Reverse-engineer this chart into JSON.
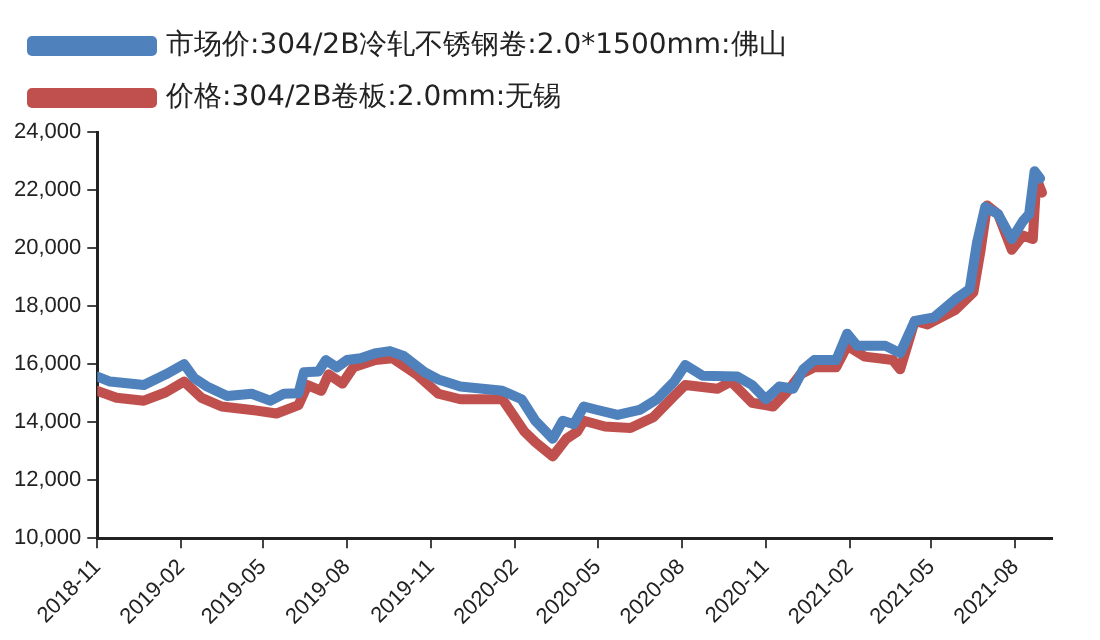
{
  "chart_data": {
    "type": "line",
    "legend": "top",
    "marker": "none",
    "line_style": "solid",
    "grid": false,
    "xlim": [
      "2018-11-01",
      "2021-09-10"
    ],
    "xticks": [
      "2018-11",
      "2019-02",
      "2019-05",
      "2019-08",
      "2019-11",
      "2020-02",
      "2020-05",
      "2020-08",
      "2020-11",
      "2021-02",
      "2021-05",
      "2021-08"
    ],
    "ylim": [
      10000,
      24000
    ],
    "yticks": [
      {
        "value": 10000,
        "label": "10,000"
      },
      {
        "value": 12000,
        "label": "12,000"
      },
      {
        "value": 14000,
        "label": "14,000"
      },
      {
        "value": 16000,
        "label": "16,000"
      },
      {
        "value": 18000,
        "label": "18,000"
      },
      {
        "value": 20000,
        "label": "20,000"
      },
      {
        "value": 22000,
        "label": "22,000"
      },
      {
        "value": 24000,
        "label": "24,000"
      }
    ],
    "series": [
      {
        "name": "市场价:304/2B冷轧不锈钢卷:2.0*1500mm:佛山",
        "color": "#4f81bd",
        "x": [
          "2018-11-01",
          "2018-11-15",
          "2018-12-22",
          "2019-01-15",
          "2019-02-04",
          "2019-02-15",
          "2019-03-01",
          "2019-03-23",
          "2019-04-19",
          "2019-05-09",
          "2019-05-24",
          "2019-06-09",
          "2019-06-15",
          "2019-07-01",
          "2019-07-09",
          "2019-07-21",
          "2019-08-01",
          "2019-08-16",
          "2019-09-02",
          "2019-09-17",
          "2019-10-02",
          "2019-10-25",
          "2019-11-09",
          "2019-12-03",
          "2020-01-18",
          "2020-02-08",
          "2020-02-23",
          "2020-03-13",
          "2020-03-24",
          "2020-04-05",
          "2020-04-16",
          "2020-05-01",
          "2020-05-23",
          "2020-06-16",
          "2020-07-05",
          "2020-07-24",
          "2020-08-05",
          "2020-08-24",
          "2020-10-01",
          "2020-10-17",
          "2020-11-01",
          "2020-11-16",
          "2020-12-01",
          "2020-12-12",
          "2020-12-24",
          "2021-01-17",
          "2021-01-29",
          "2021-02-09",
          "2021-03-12",
          "2021-03-28",
          "2021-04-13",
          "2021-05-04",
          "2021-05-27",
          "2021-06-12",
          "2021-06-20",
          "2021-06-29",
          "2021-07-13",
          "2021-07-28",
          "2021-08-09",
          "2021-08-16",
          "2021-08-22",
          "2021-08-28"
        ],
        "values": [
          15570,
          15400,
          15280,
          15650,
          16000,
          15520,
          15230,
          14900,
          14980,
          14740,
          14980,
          15000,
          15720,
          15750,
          16140,
          15890,
          16140,
          16200,
          16380,
          16450,
          16280,
          15720,
          15470,
          15230,
          15080,
          14790,
          14050,
          13430,
          14050,
          13930,
          14540,
          14420,
          14250,
          14420,
          14790,
          15400,
          15970,
          15600,
          15570,
          15280,
          14790,
          15230,
          15150,
          15820,
          16140,
          16140,
          17050,
          16630,
          16630,
          16380,
          17490,
          17610,
          18230,
          18590,
          20190,
          21420,
          21170,
          20310,
          20920,
          21170,
          22650,
          22400
        ]
      },
      {
        "name": "价格:304/2B卷板:2.0mm:无锡",
        "color": "#c0504d",
        "x": [
          "2018-11-01",
          "2018-11-22",
          "2018-12-22",
          "2019-01-15",
          "2019-02-04",
          "2019-02-23",
          "2019-03-17",
          "2019-04-19",
          "2019-05-16",
          "2019-06-09",
          "2019-06-19",
          "2019-07-04",
          "2019-07-12",
          "2019-07-27",
          "2019-08-08",
          "2019-09-01",
          "2019-09-20",
          "2019-10-16",
          "2019-11-09",
          "2019-12-03",
          "2020-01-18",
          "2020-02-11",
          "2020-02-23",
          "2020-03-13",
          "2020-03-28",
          "2020-04-09",
          "2020-04-16",
          "2020-05-09",
          "2020-06-06",
          "2020-07-01",
          "2020-07-24",
          "2020-08-05",
          "2020-09-09",
          "2020-09-24",
          "2020-10-17",
          "2020-11-09",
          "2020-11-24",
          "2020-12-09",
          "2020-12-24",
          "2021-01-17",
          "2021-01-29",
          "2021-02-17",
          "2021-03-20",
          "2021-03-28",
          "2021-04-13",
          "2021-04-27",
          "2021-05-27",
          "2021-06-16",
          "2021-06-24",
          "2021-07-01",
          "2021-07-13",
          "2021-07-28",
          "2021-08-09",
          "2021-08-20",
          "2021-08-24",
          "2021-08-30"
        ],
        "values": [
          15080,
          14840,
          14740,
          15030,
          15400,
          14840,
          14540,
          14420,
          14300,
          14590,
          15280,
          15080,
          15650,
          15330,
          15890,
          16140,
          16200,
          15650,
          14980,
          14790,
          14790,
          13680,
          13310,
          12820,
          13430,
          13680,
          14050,
          13850,
          13800,
          14170,
          14910,
          15280,
          15150,
          15400,
          14670,
          14540,
          15030,
          15650,
          15890,
          15890,
          16630,
          16260,
          16140,
          15820,
          17490,
          17370,
          17860,
          18470,
          19940,
          21470,
          21170,
          19940,
          20430,
          20310,
          22400,
          21910
        ]
      }
    ]
  }
}
